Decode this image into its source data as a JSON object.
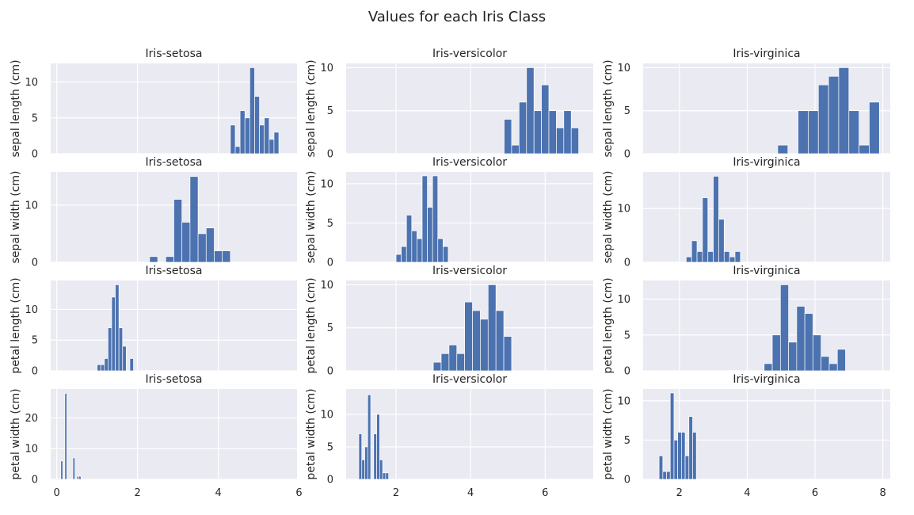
{
  "figure": {
    "title": "Values for each Iris Class"
  },
  "colors": {
    "bar": "#4c72b0",
    "panel_background": "#eaeaf2",
    "grid": "#ffffff"
  },
  "chart_data": [
    {
      "type": "bar",
      "row": 0,
      "col": 0,
      "title": "Iris-setosa",
      "ylabel": "sepal length (cm)",
      "xlim": [
        -0.15,
        5.95
      ],
      "ylim": [
        0,
        12.6
      ],
      "xticks": [
        0,
        2,
        4,
        6
      ],
      "yticks": [
        0,
        5,
        10
      ],
      "show_xticklabels": false,
      "bins": [
        [
          4.3,
          4.42
        ],
        [
          4.42,
          4.54
        ],
        [
          4.54,
          4.66
        ],
        [
          4.66,
          4.78
        ],
        [
          4.78,
          4.9
        ],
        [
          4.9,
          5.02
        ],
        [
          5.02,
          5.14
        ],
        [
          5.14,
          5.26
        ],
        [
          5.26,
          5.38
        ],
        [
          5.38,
          5.5
        ],
        [
          5.5,
          5.62
        ],
        [
          5.62,
          5.74
        ],
        [
          5.74,
          5.86
        ]
      ],
      "values": [
        4,
        1,
        6,
        5,
        12,
        8,
        4,
        5,
        2,
        3,
        0,
        0,
        0
      ]
    },
    {
      "type": "bar",
      "row": 0,
      "col": 1,
      "title": "Iris-versicolor",
      "ylabel": "sepal length (cm)",
      "xlim": [
        0.66,
        7.29
      ],
      "ylim": [
        0,
        10.5
      ],
      "xticks": [
        2,
        4,
        6
      ],
      "yticks": [
        0,
        5,
        10
      ],
      "show_xticklabels": false,
      "bins": [
        [
          4.9,
          5.1
        ],
        [
          5.1,
          5.3
        ],
        [
          5.3,
          5.5
        ],
        [
          5.5,
          5.7
        ],
        [
          5.7,
          5.9
        ],
        [
          5.9,
          6.1
        ],
        [
          6.1,
          6.3
        ],
        [
          6.3,
          6.5
        ],
        [
          6.5,
          6.7
        ],
        [
          6.7,
          6.9
        ],
        [
          6.9,
          7.1
        ]
      ],
      "values": [
        4,
        1,
        6,
        10,
        5,
        8,
        5,
        3,
        5,
        3,
        0
      ]
    },
    {
      "type": "bar",
      "row": 0,
      "col": 2,
      "title": "Iris-virginica",
      "ylabel": "sepal length (cm)",
      "xlim": [
        0.93,
        8.22
      ],
      "ylim": [
        0,
        10.5
      ],
      "xticks": [
        2,
        4,
        6,
        8
      ],
      "yticks": [
        0,
        5,
        10
      ],
      "show_xticklabels": false,
      "bins": [
        [
          4.9,
          5.2
        ],
        [
          5.2,
          5.5
        ],
        [
          5.5,
          5.8
        ],
        [
          5.8,
          6.1
        ],
        [
          6.1,
          6.4
        ],
        [
          6.4,
          6.7
        ],
        [
          6.7,
          7.0
        ],
        [
          7.0,
          7.3
        ],
        [
          7.3,
          7.6
        ],
        [
          7.6,
          7.9
        ]
      ],
      "values": [
        1,
        0,
        5,
        5,
        8,
        9,
        10,
        5,
        1,
        6
      ]
    },
    {
      "type": "bar",
      "row": 1,
      "col": 0,
      "title": "Iris-setosa",
      "ylabel": "sepal width (cm)",
      "xlim": [
        -0.15,
        5.95
      ],
      "ylim": [
        0,
        15.8
      ],
      "xticks": [
        0,
        2,
        4,
        6
      ],
      "yticks": [
        0,
        10
      ],
      "show_xticklabels": false,
      "bins": [
        [
          2.3,
          2.5
        ],
        [
          2.5,
          2.7
        ],
        [
          2.7,
          2.9
        ],
        [
          2.9,
          3.1
        ],
        [
          3.1,
          3.3
        ],
        [
          3.3,
          3.5
        ],
        [
          3.5,
          3.7
        ],
        [
          3.7,
          3.9
        ],
        [
          3.9,
          4.1
        ],
        [
          4.1,
          4.3
        ],
        [
          4.3,
          4.5
        ]
      ],
      "values": [
        1,
        0,
        1,
        11,
        7,
        15,
        5,
        6,
        2,
        2,
        0
      ]
    },
    {
      "type": "bar",
      "row": 1,
      "col": 1,
      "title": "Iris-versicolor",
      "ylabel": "sepal width (cm)",
      "xlim": [
        0.66,
        7.29
      ],
      "ylim": [
        0,
        11.5
      ],
      "xticks": [
        2,
        4,
        6
      ],
      "yticks": [
        0,
        5,
        10
      ],
      "show_xticklabels": false,
      "bins": [
        [
          2.0,
          2.14
        ],
        [
          2.14,
          2.28
        ],
        [
          2.28,
          2.42
        ],
        [
          2.42,
          2.56
        ],
        [
          2.56,
          2.7
        ],
        [
          2.7,
          2.84
        ],
        [
          2.84,
          2.98
        ],
        [
          2.98,
          3.12
        ],
        [
          3.12,
          3.26
        ],
        [
          3.26,
          3.4
        ]
      ],
      "values": [
        1,
        2,
        6,
        4,
        3,
        11,
        7,
        11,
        3,
        2
      ]
    },
    {
      "type": "bar",
      "row": 1,
      "col": 2,
      "title": "Iris-virginica",
      "ylabel": "sepal width (cm)",
      "xlim": [
        0.93,
        8.22
      ],
      "ylim": [
        0,
        16.8
      ],
      "xticks": [
        2,
        4,
        6,
        8
      ],
      "yticks": [
        0,
        10
      ],
      "show_xticklabels": false,
      "bins": [
        [
          2.2,
          2.36
        ],
        [
          2.36,
          2.52
        ],
        [
          2.52,
          2.68
        ],
        [
          2.68,
          2.84
        ],
        [
          2.84,
          3.0
        ],
        [
          3.0,
          3.16
        ],
        [
          3.16,
          3.32
        ],
        [
          3.32,
          3.48
        ],
        [
          3.48,
          3.64
        ],
        [
          3.64,
          3.8
        ]
      ],
      "values": [
        1,
        4,
        2,
        12,
        2,
        16,
        8,
        2,
        1,
        2
      ]
    },
    {
      "type": "bar",
      "row": 2,
      "col": 0,
      "title": "Iris-setosa",
      "ylabel": "petal length (cm)",
      "xlim": [
        -0.15,
        5.95
      ],
      "ylim": [
        0,
        14.7
      ],
      "xticks": [
        0,
        2,
        4,
        6
      ],
      "yticks": [
        0,
        5,
        10
      ],
      "show_xticklabels": false,
      "bins": [
        [
          1.0,
          1.09
        ],
        [
          1.09,
          1.18
        ],
        [
          1.18,
          1.27
        ],
        [
          1.27,
          1.36
        ],
        [
          1.36,
          1.45
        ],
        [
          1.45,
          1.54
        ],
        [
          1.54,
          1.63
        ],
        [
          1.63,
          1.72
        ],
        [
          1.72,
          1.81
        ],
        [
          1.81,
          1.9
        ]
      ],
      "values": [
        1,
        1,
        2,
        7,
        12,
        14,
        7,
        4,
        0,
        2
      ]
    },
    {
      "type": "bar",
      "row": 2,
      "col": 1,
      "title": "Iris-versicolor",
      "ylabel": "petal length (cm)",
      "xlim": [
        0.66,
        7.29
      ],
      "ylim": [
        0,
        10.5
      ],
      "xticks": [
        2,
        4,
        6
      ],
      "yticks": [
        0,
        5,
        10
      ],
      "show_xticklabels": false,
      "bins": [
        [
          3.0,
          3.21
        ],
        [
          3.21,
          3.42
        ],
        [
          3.42,
          3.63
        ],
        [
          3.63,
          3.84
        ],
        [
          3.84,
          4.05
        ],
        [
          4.05,
          4.26
        ],
        [
          4.26,
          4.47
        ],
        [
          4.47,
          4.68
        ],
        [
          4.68,
          4.89
        ],
        [
          4.89,
          5.1
        ]
      ],
      "values": [
        1,
        2,
        3,
        2,
        8,
        7,
        6,
        10,
        7,
        4
      ]
    },
    {
      "type": "bar",
      "row": 2,
      "col": 2,
      "title": "Iris-virginica",
      "ylabel": "petal length (cm)",
      "xlim": [
        0.93,
        8.22
      ],
      "ylim": [
        0,
        12.6
      ],
      "xticks": [
        2,
        4,
        6,
        8
      ],
      "yticks": [
        0,
        5,
        10
      ],
      "show_xticklabels": false,
      "bins": [
        [
          4.5,
          4.74
        ],
        [
          4.74,
          4.98
        ],
        [
          4.98,
          5.22
        ],
        [
          5.22,
          5.46
        ],
        [
          5.46,
          5.7
        ],
        [
          5.7,
          5.94
        ],
        [
          5.94,
          6.18
        ],
        [
          6.18,
          6.42
        ],
        [
          6.42,
          6.66
        ],
        [
          6.66,
          6.9
        ]
      ],
      "values": [
        1,
        5,
        12,
        4,
        9,
        8,
        5,
        2,
        1,
        3
      ]
    },
    {
      "type": "bar",
      "row": 3,
      "col": 0,
      "title": "Iris-setosa",
      "ylabel": "petal width (cm)",
      "xlim": [
        -0.15,
        5.95
      ],
      "ylim": [
        0,
        29.4
      ],
      "xticks": [
        0,
        2,
        4,
        6
      ],
      "yticks": [
        0,
        10,
        20
      ],
      "show_xticklabels": true,
      "bins": [
        [
          0.1,
          0.15
        ],
        [
          0.15,
          0.2
        ],
        [
          0.2,
          0.25
        ],
        [
          0.25,
          0.3
        ],
        [
          0.3,
          0.35
        ],
        [
          0.35,
          0.4
        ],
        [
          0.4,
          0.45
        ],
        [
          0.45,
          0.5
        ],
        [
          0.5,
          0.55
        ],
        [
          0.55,
          0.6
        ]
      ],
      "values": [
        6,
        0,
        28,
        0,
        0,
        0,
        7,
        0,
        1,
        1
      ]
    },
    {
      "type": "bar",
      "row": 3,
      "col": 1,
      "title": "Iris-versicolor",
      "ylabel": "petal width (cm)",
      "xlim": [
        0.66,
        7.29
      ],
      "ylim": [
        0,
        13.9
      ],
      "xticks": [
        2,
        4,
        6
      ],
      "yticks": [
        0,
        5,
        10
      ],
      "show_xticklabels": true,
      "bins": [
        [
          1.0,
          1.08
        ],
        [
          1.08,
          1.16
        ],
        [
          1.16,
          1.24
        ],
        [
          1.24,
          1.32
        ],
        [
          1.32,
          1.4
        ],
        [
          1.4,
          1.48
        ],
        [
          1.48,
          1.56
        ],
        [
          1.56,
          1.64
        ],
        [
          1.64,
          1.72
        ],
        [
          1.72,
          1.8
        ]
      ],
      "values": [
        7,
        3,
        5,
        13,
        0,
        7,
        10,
        3,
        1,
        1
      ]
    },
    {
      "type": "bar",
      "row": 3,
      "col": 2,
      "title": "Iris-virginica",
      "ylabel": "petal width (cm)",
      "xlim": [
        0.93,
        8.22
      ],
      "ylim": [
        0,
        11.5
      ],
      "xticks": [
        2,
        4,
        6,
        8
      ],
      "yticks": [
        0,
        5,
        10
      ],
      "show_xticklabels": true,
      "bins": [
        [
          1.4,
          1.51
        ],
        [
          1.51,
          1.62
        ],
        [
          1.62,
          1.73
        ],
        [
          1.73,
          1.84
        ],
        [
          1.84,
          1.95
        ],
        [
          1.95,
          2.06
        ],
        [
          2.06,
          2.17
        ],
        [
          2.17,
          2.28
        ],
        [
          2.28,
          2.39
        ],
        [
          2.39,
          2.5
        ]
      ],
      "values": [
        3,
        1,
        1,
        11,
        5,
        6,
        6,
        3,
        8,
        6
      ]
    }
  ]
}
